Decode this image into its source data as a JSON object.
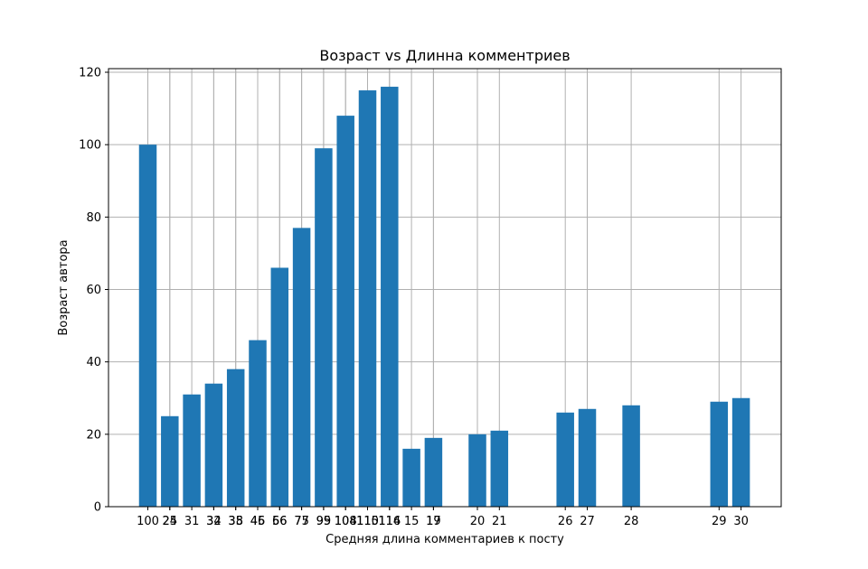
{
  "chart_data": {
    "type": "bar",
    "title": "Возраст vs Длинна комментриев",
    "xlabel": "Средняя длина комментариев к посту",
    "ylabel": "Возраст автора",
    "ylim": [
      0,
      121
    ],
    "grid": true,
    "bar_color": "#1f77b4",
    "x_ticks": [
      {
        "slot": 0,
        "labels": [
          "100"
        ]
      },
      {
        "slot": 1,
        "labels": [
          "25",
          "24"
        ]
      },
      {
        "slot": 2,
        "labels": [
          "31"
        ]
      },
      {
        "slot": 3,
        "labels": [
          "32",
          "34"
        ]
      },
      {
        "slot": 4,
        "labels": [
          "35",
          "38"
        ]
      },
      {
        "slot": 5,
        "labels": [
          "45",
          "46"
        ]
      },
      {
        "slot": 6,
        "labels": [
          "56",
          "66"
        ]
      },
      {
        "slot": 7,
        "labels": [
          "75",
          "77"
        ]
      },
      {
        "slot": 8,
        "labels": [
          "95",
          "99"
        ]
      },
      {
        "slot": 9,
        "labels": [
          "104",
          "108"
        ]
      },
      {
        "slot": 10,
        "labels": [
          "110",
          "115"
        ]
      },
      {
        "slot": 11,
        "labels": [
          "116",
          "114"
        ]
      },
      {
        "slot": 12,
        "labels": [
          "15"
        ]
      },
      {
        "slot": 13,
        "labels": [
          "19",
          "17"
        ]
      },
      {
        "slot": 15,
        "labels": [
          "20"
        ]
      },
      {
        "slot": 16,
        "labels": [
          "21"
        ]
      },
      {
        "slot": 19,
        "labels": [
          "26"
        ]
      },
      {
        "slot": 20,
        "labels": [
          "27"
        ]
      },
      {
        "slot": 22,
        "labels": [
          "28"
        ]
      },
      {
        "slot": 26,
        "labels": [
          "29"
        ]
      },
      {
        "slot": 27,
        "labels": [
          "30"
        ]
      }
    ],
    "bars": [
      {
        "slot": 0,
        "value": 100
      },
      {
        "slot": 1,
        "value": 25
      },
      {
        "slot": 2,
        "value": 31
      },
      {
        "slot": 3,
        "value": 34
      },
      {
        "slot": 4,
        "value": 38
      },
      {
        "slot": 5,
        "value": 46
      },
      {
        "slot": 6,
        "value": 66
      },
      {
        "slot": 7,
        "value": 77
      },
      {
        "slot": 8,
        "value": 99
      },
      {
        "slot": 9,
        "value": 108
      },
      {
        "slot": 10,
        "value": 115
      },
      {
        "slot": 11,
        "value": 116
      },
      {
        "slot": 12,
        "value": 16
      },
      {
        "slot": 13,
        "value": 19
      },
      {
        "slot": 15,
        "value": 20
      },
      {
        "slot": 16,
        "value": 21
      },
      {
        "slot": 19,
        "value": 26
      },
      {
        "slot": 20,
        "value": 27
      },
      {
        "slot": 22,
        "value": 28
      },
      {
        "slot": 26,
        "value": 29
      },
      {
        "slot": 27,
        "value": 30
      }
    ],
    "y_ticks": [
      0,
      20,
      40,
      60,
      80,
      100,
      120
    ]
  }
}
